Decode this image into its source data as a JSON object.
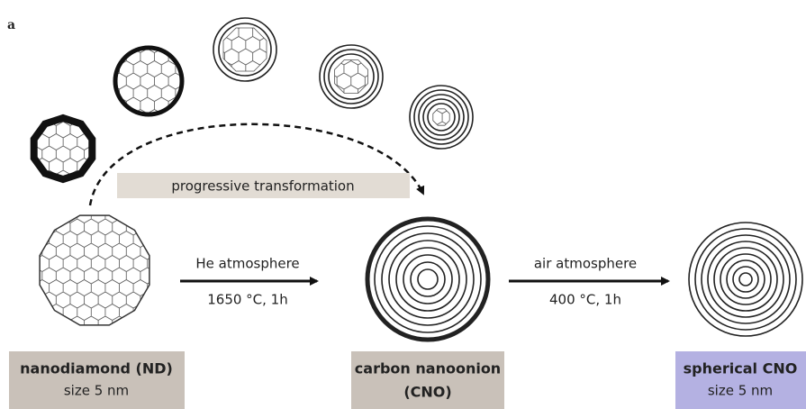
{
  "panel_label": "a",
  "transformation_label": "progressive transformation",
  "step1": {
    "top": "He atmosphere",
    "bottom": "1650 °C, 1h"
  },
  "step2": {
    "top": "air atmosphere",
    "bottom": "400 °C, 1h"
  },
  "boxes": [
    {
      "title": "nanodiamond (ND)",
      "subtitle": "size 5 nm"
    },
    {
      "title": "carbon nanoonion",
      "subtitle": "(CNO)"
    },
    {
      "title": "spherical CNO",
      "subtitle": "size 5 nm"
    }
  ]
}
